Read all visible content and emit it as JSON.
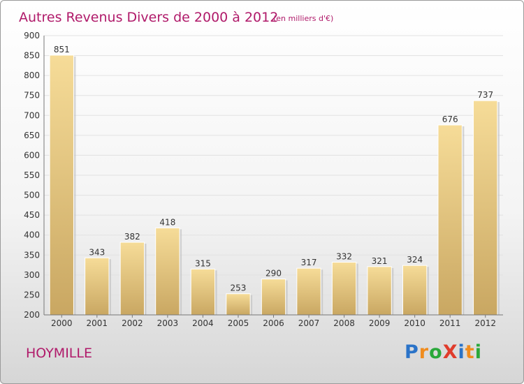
{
  "chart_data": {
    "type": "bar",
    "title": "Autres Revenus Divers de 2000 à 2012",
    "subtitle": "(en milliers d'€)",
    "categories": [
      "2000",
      "2001",
      "2002",
      "2003",
      "2004",
      "2005",
      "2006",
      "2007",
      "2008",
      "2009",
      "2010",
      "2011",
      "2012"
    ],
    "values": [
      851,
      343,
      382,
      418,
      315,
      253,
      290,
      317,
      332,
      321,
      324,
      676,
      737
    ],
    "ylim": [
      200,
      900
    ],
    "yticks": [
      200,
      250,
      300,
      350,
      400,
      450,
      500,
      550,
      600,
      650,
      700,
      750,
      800,
      850,
      900
    ],
    "grid": true,
    "bar_color": "#e6c47a"
  },
  "footer": {
    "city": "HOYMILLE",
    "brand": "ProXiti",
    "brand_colors": [
      "#2a73c8",
      "#f08c1e",
      "#2aa83a",
      "#e03c2c",
      "#2a73c8",
      "#f08c1e",
      "#2aa83a"
    ]
  }
}
